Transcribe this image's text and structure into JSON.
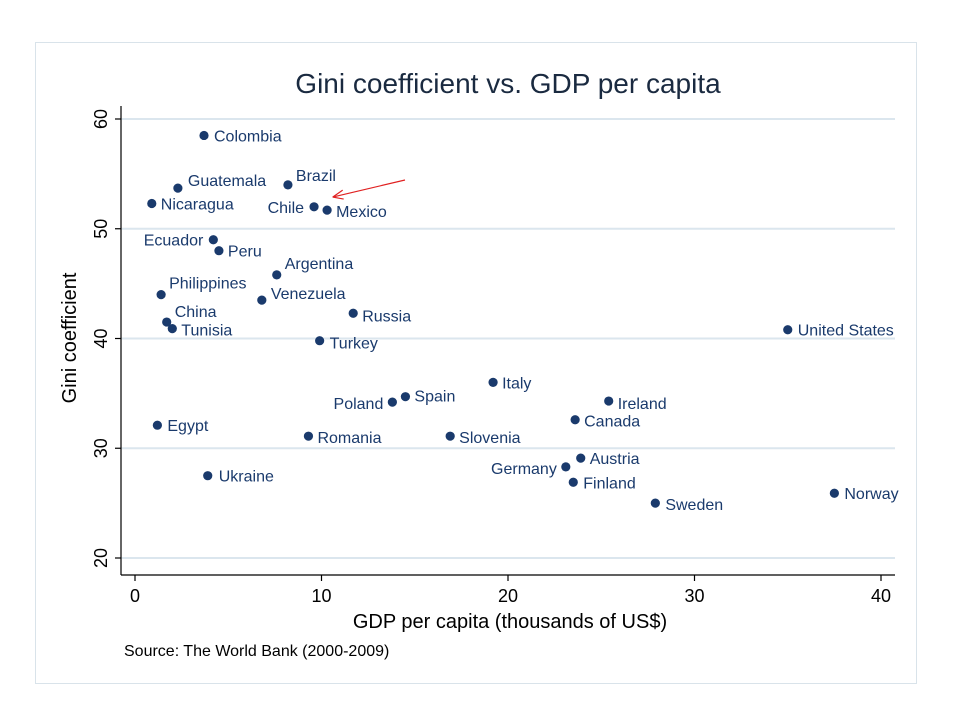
{
  "chart_data": {
    "type": "scatter",
    "title": "Gini coefficient vs. GDP per capita",
    "xlabel": "GDP per capita (thousands of US$)",
    "ylabel": "Gini coefficient",
    "source": "Source:  The World Bank (2000-2009)",
    "xlim": [
      0,
      40
    ],
    "ylim": [
      20,
      60
    ],
    "xticks": [
      "0",
      "10",
      "20",
      "30",
      "40"
    ],
    "yticks": [
      "20",
      "30",
      "40",
      "50",
      "60"
    ],
    "grid": true,
    "colors": {
      "marker": "#1a3a6c",
      "grid": "#dbe6ee",
      "arrow": "#e02020"
    },
    "points": [
      {
        "label": "Colombia",
        "x": 3.7,
        "y": 58.5
      },
      {
        "label": "Guatemala",
        "x": 2.3,
        "y": 53.7
      },
      {
        "label": "Brazil",
        "x": 8.2,
        "y": 54.0
      },
      {
        "label": "Nicaragua",
        "x": 0.9,
        "y": 52.3
      },
      {
        "label": "Chile",
        "x": 9.6,
        "y": 52.0
      },
      {
        "label": "Mexico",
        "x": 10.3,
        "y": 51.7
      },
      {
        "label": "Ecuador",
        "x": 4.2,
        "y": 49.0
      },
      {
        "label": "Peru",
        "x": 4.5,
        "y": 48.0
      },
      {
        "label": "Argentina",
        "x": 7.6,
        "y": 45.8
      },
      {
        "label": "Philippines",
        "x": 1.4,
        "y": 44.0
      },
      {
        "label": "Venezuela",
        "x": 6.8,
        "y": 43.5
      },
      {
        "label": "Russia",
        "x": 11.7,
        "y": 42.3
      },
      {
        "label": "China",
        "x": 1.7,
        "y": 41.5
      },
      {
        "label": "Tunisia",
        "x": 2.0,
        "y": 40.9
      },
      {
        "label": "Turkey",
        "x": 9.9,
        "y": 39.8
      },
      {
        "label": "United States",
        "x": 35.0,
        "y": 40.8
      },
      {
        "label": "Italy",
        "x": 19.2,
        "y": 36.0
      },
      {
        "label": "Spain",
        "x": 14.5,
        "y": 34.7
      },
      {
        "label": "Poland",
        "x": 13.8,
        "y": 34.2
      },
      {
        "label": "Ireland",
        "x": 25.4,
        "y": 34.3
      },
      {
        "label": "Canada",
        "x": 23.6,
        "y": 32.6
      },
      {
        "label": "Egypt",
        "x": 1.2,
        "y": 32.1
      },
      {
        "label": "Romania",
        "x": 9.3,
        "y": 31.1
      },
      {
        "label": "Slovenia",
        "x": 16.9,
        "y": 31.1
      },
      {
        "label": "Austria",
        "x": 23.9,
        "y": 29.1
      },
      {
        "label": "Germany",
        "x": 23.1,
        "y": 28.3
      },
      {
        "label": "Finland",
        "x": 23.5,
        "y": 26.9
      },
      {
        "label": "Ukraine",
        "x": 3.9,
        "y": 27.5
      },
      {
        "label": "Sweden",
        "x": 27.9,
        "y": 25.0
      },
      {
        "label": "Norway",
        "x": 37.5,
        "y": 25.9
      }
    ]
  }
}
